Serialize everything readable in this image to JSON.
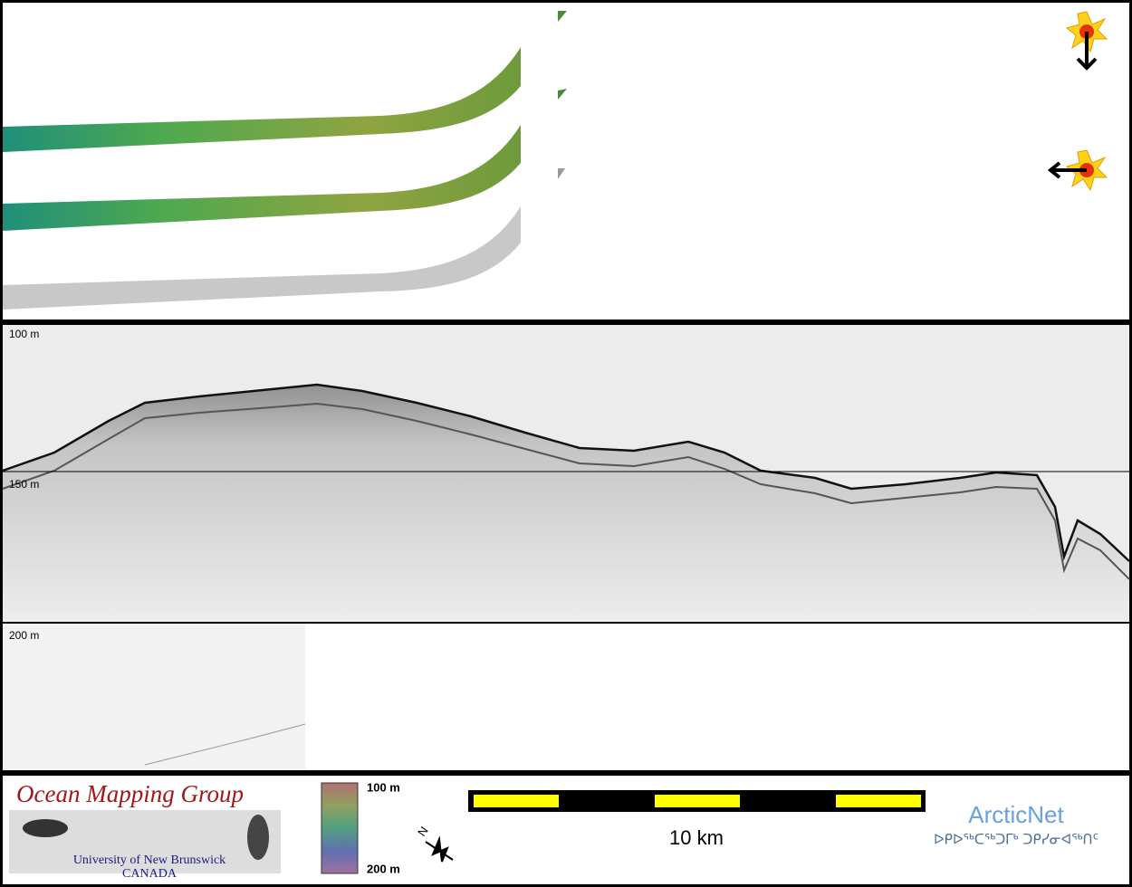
{
  "depth_labels": [
    "100 m",
    "150 m",
    "200 m"
  ],
  "logo": {
    "title": "Ocean Mapping Group",
    "university": "University of New Brunswick",
    "country": "CANADA"
  },
  "colorbar": {
    "top": "100 m",
    "bottom": "200 m"
  },
  "compass": "N",
  "scale_bar": "10 km",
  "partner": {
    "name": "ArcticNet",
    "syllabics": "ᐅᑭᐅᖅᑕᖅᑐᒥᒃ ᑐᑭᓯᓂᐊᖅᑎᑦ"
  }
}
